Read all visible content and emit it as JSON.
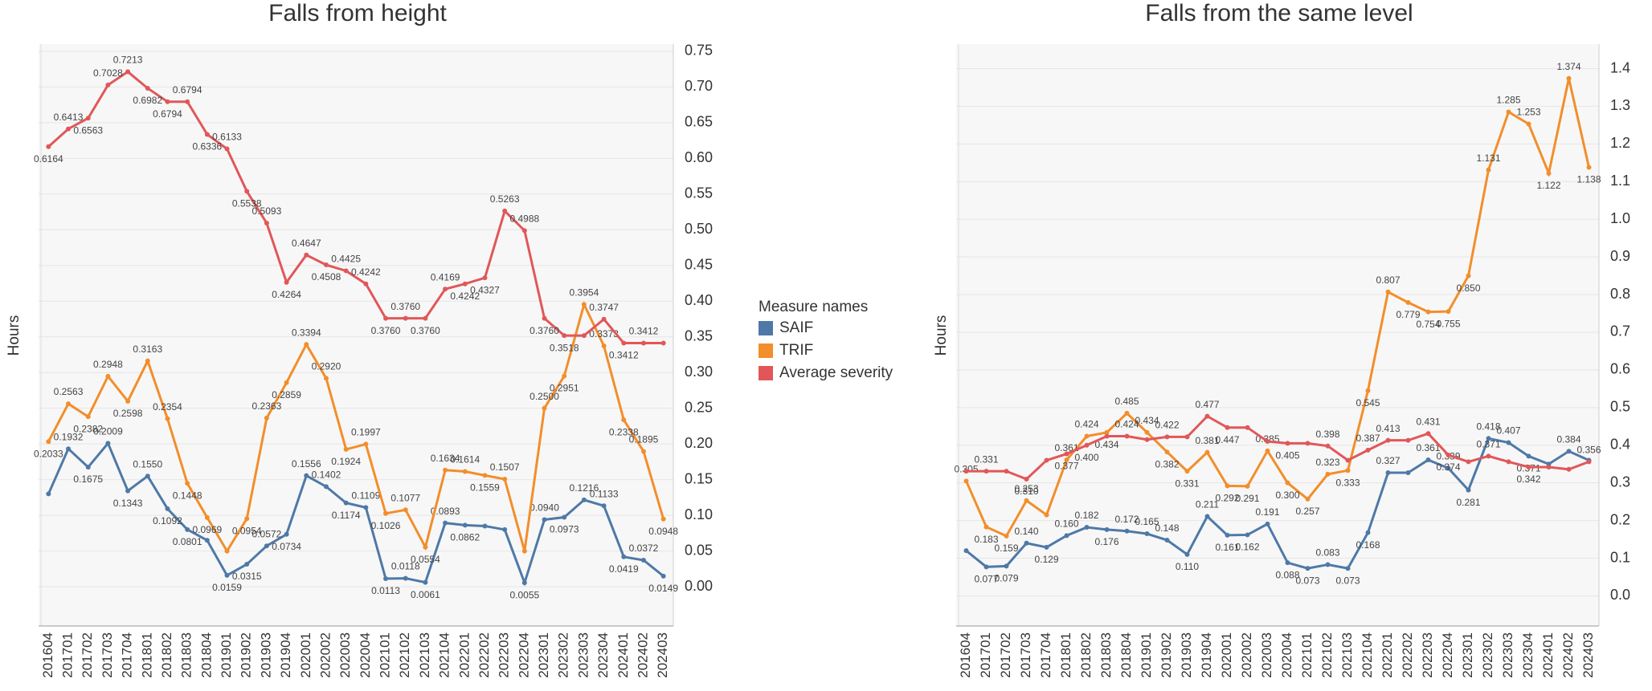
{
  "legend": {
    "title": "Measure names"
  },
  "chart_data": [
    {
      "type": "line",
      "title": "Falls from height",
      "y_label": "Hours",
      "categories": [
        "201604",
        "201701",
        "201702",
        "201703",
        "201704",
        "201801",
        "201802",
        "201803",
        "201804",
        "201901",
        "201902",
        "201903",
        "201904",
        "202001",
        "202002",
        "202003",
        "202004",
        "202101",
        "202102",
        "202103",
        "202104",
        "202201",
        "202202",
        "202203",
        "202204",
        "202301",
        "202302",
        "202303",
        "202304",
        "202401",
        "202402",
        "202403"
      ],
      "ylim": [
        -0.055,
        0.76
      ],
      "yticks": [
        {
          "value": 0,
          "label": "0.00"
        },
        0.05,
        {
          "value": 0.1,
          "label": "0.10"
        },
        0.15,
        {
          "value": 0.2,
          "label": "0.20"
        },
        0.25,
        {
          "value": 0.3,
          "label": "0.30"
        },
        0.35,
        {
          "value": 0.4,
          "label": "0.40"
        },
        0.45,
        {
          "value": 0.5,
          "label": "0.50"
        },
        0.55,
        {
          "value": 0.6,
          "label": "0.60"
        },
        0.65,
        {
          "value": 0.7,
          "label": "0.70"
        },
        0.75
      ],
      "grid": true,
      "series": [
        {
          "name": "SAIF",
          "color": "#4e79a7",
          "values": [
            0.13,
            0.1932,
            0.1675,
            0.2009,
            0.1343,
            0.155,
            0.1092,
            0.0801,
            0.065,
            0.0159,
            0.0315,
            0.0572,
            0.0734,
            0.1556,
            0.1402,
            0.1174,
            0.1109,
            0.0113,
            0.0118,
            0.0061,
            0.0893,
            0.0862,
            0.085,
            0.08,
            0.0055,
            0.094,
            0.0973,
            0.1216,
            0.1133,
            0.0419,
            0.0372,
            0.0149
          ],
          "value_labels": [
            null,
            "0.1932",
            "0.1675",
            "0.2009",
            "0.1343",
            "0.1550",
            "0.1092",
            "0.0801",
            null,
            "0.0159",
            "0.0315",
            "0.0572",
            "0.0734",
            "0.1556",
            "0.1402",
            "0.1174",
            "0.1109",
            "0.0113",
            "0.0118",
            "0.0061",
            "0.0893",
            "0.0862",
            null,
            null,
            "0.0055",
            "0.0940",
            "0.0973",
            "0.1216",
            "0.1133",
            "0.0419",
            "0.0372",
            "0.0149"
          ]
        },
        {
          "name": "TRIF",
          "color": "#f28e2b",
          "values": [
            0.2033,
            0.2563,
            0.2382,
            0.2948,
            0.2598,
            0.3163,
            0.2354,
            0.1448,
            0.0969,
            0.05,
            0.0954,
            0.2363,
            0.2859,
            0.3394,
            0.292,
            0.1924,
            0.1997,
            0.1026,
            0.1077,
            0.0554,
            0.1634,
            0.1614,
            0.1559,
            0.1507,
            0.05,
            0.25,
            0.2951,
            0.3954,
            0.3373,
            0.2338,
            0.1895,
            0.0948
          ],
          "value_labels": [
            "0.2033",
            "0.2563",
            "0.2382",
            "0.2948",
            "0.2598",
            "0.3163",
            "0.2354",
            "0.1448",
            "0.0969",
            null,
            "0.0954",
            "0.2363",
            "0.2859",
            "0.3394",
            "0.2920",
            "0.1924",
            "0.1997",
            "0.1026",
            "0.1077",
            "0.0554",
            "0.1634",
            "0.1614",
            "0.1559",
            "0.1507",
            null,
            "0.2500",
            "0.2951",
            "0.3954",
            "0.3373",
            "0.2338",
            "0.1895",
            "0.0948"
          ]
        },
        {
          "name": "Average severity",
          "color": "#e15759",
          "values": [
            0.6164,
            0.6413,
            0.6563,
            0.7028,
            0.7213,
            0.6982,
            0.6794,
            0.6794,
            0.6336,
            0.6133,
            0.5538,
            0.5093,
            0.4264,
            0.4647,
            0.4508,
            0.4425,
            0.4242,
            0.376,
            0.376,
            0.376,
            0.4169,
            0.4242,
            0.4327,
            0.5263,
            0.4988,
            0.376,
            0.3518,
            0.3518,
            0.3747,
            0.3412,
            0.3412,
            0.3412
          ],
          "value_labels": [
            "0.6164",
            "0.6413",
            "0.6563",
            "0.7028",
            "0.7213",
            "0.6982",
            "0.6794",
            "0.6794",
            "0.6336",
            "0.6133",
            "0.5538",
            "0.5093",
            "0.4264",
            "0.4647",
            "0.4508",
            "0.4425",
            "0.4242",
            "0.3760",
            "0.3760",
            "0.3760",
            "0.4169",
            "0.4242",
            "0.4327",
            "0.5263",
            "0.4988",
            "0.3760",
            "0.3518",
            null,
            "0.3747",
            "0.3412",
            "0.3412",
            null
          ]
        }
      ]
    },
    {
      "type": "line",
      "title": "Falls from the same level",
      "y_label": "Hours",
      "categories": [
        "201604",
        "201701",
        "201702",
        "201703",
        "201704",
        "201801",
        "201802",
        "201803",
        "201804",
        "201901",
        "201902",
        "201903",
        "201904",
        "202001",
        "202002",
        "202003",
        "202004",
        "202101",
        "202102",
        "202103",
        "202104",
        "202201",
        "202202",
        "202203",
        "202204",
        "202301",
        "202302",
        "202303",
        "202304",
        "202401",
        "202402",
        "202403"
      ],
      "ylim": [
        -0.08,
        1.465
      ],
      "yticks": [
        {
          "value": 0,
          "label": "0.0"
        },
        0.1,
        0.2,
        0.3,
        0.4,
        0.5,
        0.6,
        0.7,
        0.8,
        0.9,
        {
          "value": 1,
          "label": "1.0"
        },
        1.1,
        1.2,
        1.3,
        1.4
      ],
      "grid": true,
      "series": [
        {
          "color": "#4e79a7",
          "values": [
            0.12,
            0.077,
            0.079,
            0.14,
            0.129,
            0.16,
            0.182,
            0.176,
            0.172,
            0.165,
            0.148,
            0.11,
            0.211,
            0.161,
            0.162,
            0.191,
            0.088,
            0.073,
            0.083,
            0.073,
            0.168,
            0.327,
            0.327,
            0.361,
            0.339,
            0.281,
            0.418,
            0.407,
            0.371,
            0.35,
            0.384,
            0.36
          ],
          "value_labels": [
            null,
            "0.077",
            "0.079",
            "0.140",
            "0.129",
            "0.160",
            "0.182",
            "0.176",
            "0.172",
            "0.165",
            "0.148",
            "0.110",
            "0.211",
            "0.161",
            "0.162",
            "0.191",
            "0.088",
            "0.073",
            "0.083",
            "0.073",
            "0.168",
            "0.327",
            null,
            "0.361",
            "0.339",
            "0.281",
            "0.418",
            "0.407",
            "0.371",
            null,
            "0.384",
            null
          ]
        },
        {
          "color": "#f28e2b",
          "values": [
            0.305,
            0.183,
            0.159,
            0.253,
            0.215,
            0.361,
            0.424,
            0.434,
            0.485,
            0.434,
            0.382,
            0.331,
            0.381,
            0.292,
            0.291,
            0.385,
            0.3,
            0.257,
            0.323,
            0.333,
            0.545,
            0.807,
            0.779,
            0.754,
            0.755,
            0.85,
            1.131,
            1.285,
            1.253,
            1.122,
            1.374,
            1.138
          ],
          "value_labels": [
            "0.305",
            "0.183",
            "0.159",
            "0.253",
            null,
            "0.361",
            "0.424",
            "0.434",
            "0.485",
            "0.434",
            "0.382",
            "0.331",
            "0.381",
            "0.292",
            "0.291",
            "0.385",
            "0.300",
            "0.257",
            "0.323",
            "0.333",
            "0.545",
            "0.807",
            "0.779",
            "0.754",
            "0.755",
            "0.850",
            "1.131",
            "1.285",
            "1.253",
            "1.122",
            "1.374",
            "1.138"
          ]
        },
        {
          "color": "#e15759",
          "values": [
            0.331,
            0.331,
            0.331,
            0.31,
            0.36,
            0.377,
            0.4,
            0.424,
            0.424,
            0.415,
            0.422,
            0.422,
            0.477,
            0.447,
            0.447,
            0.41,
            0.405,
            0.405,
            0.398,
            0.36,
            0.387,
            0.413,
            0.413,
            0.431,
            0.374,
            0.356,
            0.371,
            0.356,
            0.342,
            0.342,
            0.336,
            0.356
          ],
          "value_labels": [
            null,
            "0.331",
            null,
            "0.310",
            null,
            "0.377",
            "0.400",
            null,
            "0.424",
            null,
            "0.422",
            null,
            "0.477",
            "0.447",
            null,
            null,
            "0.405",
            null,
            "0.398",
            null,
            "0.387",
            "0.413",
            null,
            "0.431",
            "0.374",
            null,
            "0.371",
            null,
            "0.342",
            null,
            null,
            "0.356"
          ]
        }
      ]
    }
  ]
}
